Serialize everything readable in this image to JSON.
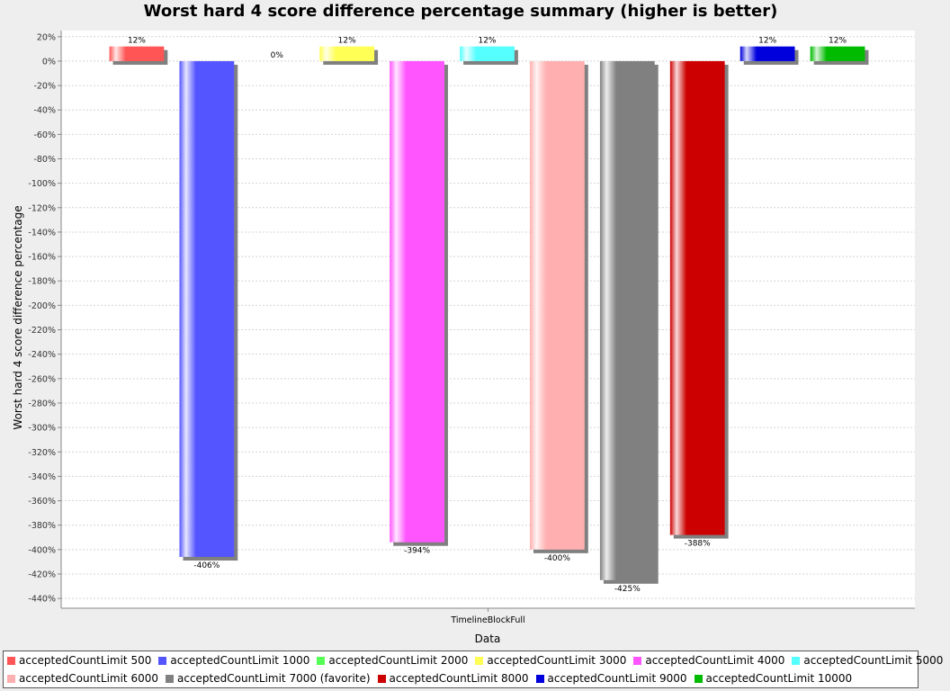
{
  "chart_data": {
    "type": "bar",
    "title": "Worst hard 4 score difference percentage summary (higher is better)",
    "xlabel": "Data",
    "ylabel": "Worst hard 4 score difference percentage",
    "categories": [
      "TimelineBlockFull"
    ],
    "ylim": [
      -448,
      25
    ],
    "ytick_step": 20,
    "grid": true,
    "legend_position": "bottom",
    "series": [
      {
        "name": "acceptedCountLimit 500",
        "values": [
          12
        ],
        "label": "12%",
        "color": "#ff5555"
      },
      {
        "name": "acceptedCountLimit 1000",
        "values": [
          -406
        ],
        "label": "-406%",
        "color": "#5555ff"
      },
      {
        "name": "acceptedCountLimit 2000",
        "values": [
          0
        ],
        "label": "0%",
        "color": "#55ff55"
      },
      {
        "name": "acceptedCountLimit 3000",
        "values": [
          12
        ],
        "label": "12%",
        "color": "#ffff55"
      },
      {
        "name": "acceptedCountLimit 4000",
        "values": [
          -394
        ],
        "label": "-394%",
        "color": "#ff55ff"
      },
      {
        "name": "acceptedCountLimit 5000",
        "values": [
          12
        ],
        "label": "12%",
        "color": "#55ffff"
      },
      {
        "name": "acceptedCountLimit 6000",
        "values": [
          -400
        ],
        "label": "-400%",
        "color": "#ffafaf"
      },
      {
        "name": "acceptedCountLimit 7000 (favorite)",
        "values": [
          -425
        ],
        "label": "-425%",
        "color": "#808080"
      },
      {
        "name": "acceptedCountLimit 8000",
        "values": [
          -388
        ],
        "label": "-388%",
        "color": "#cc0000"
      },
      {
        "name": "acceptedCountLimit 9000",
        "values": [
          12
        ],
        "label": "12%",
        "color": "#0000dd"
      },
      {
        "name": "acceptedCountLimit 10000",
        "values": [
          12
        ],
        "label": "12%",
        "color": "#00bb00"
      }
    ]
  }
}
